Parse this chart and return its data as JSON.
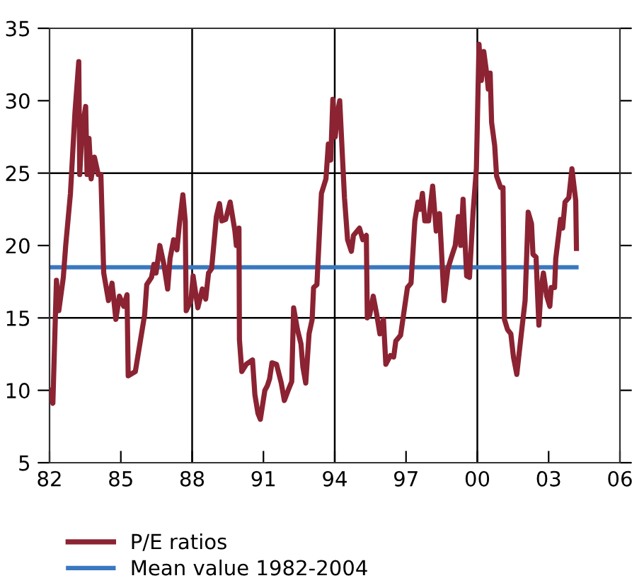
{
  "chart_data": {
    "type": "line",
    "x": [
      1982.0,
      1982.14,
      1982.29,
      1982.39,
      1982.58,
      1982.68,
      1982.88,
      1983.07,
      1983.23,
      1983.27,
      1983.38,
      1983.52,
      1983.58,
      1983.66,
      1983.75,
      1983.89,
      1984.05,
      1984.16,
      1984.28,
      1984.48,
      1984.63,
      1984.79,
      1984.94,
      1985.12,
      1985.26,
      1985.31,
      1985.61,
      1985.8,
      1986.0,
      1986.09,
      1986.29,
      1986.39,
      1986.48,
      1986.64,
      1986.81,
      1986.97,
      1987.07,
      1987.22,
      1987.36,
      1987.46,
      1987.61,
      1987.71,
      1987.75,
      1987.95,
      1988.04,
      1988.24,
      1988.43,
      1988.57,
      1988.69,
      1988.82,
      1989.02,
      1989.15,
      1989.25,
      1989.41,
      1989.6,
      1989.8,
      1989.86,
      1989.97,
      1989.99,
      1990.09,
      1990.28,
      1990.54,
      1990.64,
      1990.77,
      1990.87,
      1991.06,
      1991.16,
      1991.26,
      1991.36,
      1991.55,
      1991.75,
      1991.88,
      1992.04,
      1992.19,
      1992.27,
      1992.43,
      1992.58,
      1992.66,
      1992.78,
      1992.92,
      1993.05,
      1993.11,
      1993.25,
      1993.4,
      1993.44,
      1993.63,
      1993.73,
      1993.83,
      1993.92,
      1994.02,
      1994.12,
      1994.21,
      1994.31,
      1994.41,
      1994.54,
      1994.7,
      1994.79,
      1995.04,
      1995.18,
      1995.33,
      1995.37,
      1995.47,
      1995.62,
      1995.76,
      1995.9,
      1996.05,
      1996.15,
      1996.34,
      1996.48,
      1996.57,
      1996.77,
      1996.92,
      1997.06,
      1997.21,
      1997.37,
      1997.5,
      1997.6,
      1997.69,
      1997.79,
      1997.95,
      1998.12,
      1998.27,
      1998.41,
      1998.6,
      1998.76,
      1998.91,
      1999.07,
      1999.2,
      1999.3,
      1999.4,
      1999.49,
      1999.55,
      1999.67,
      1999.82,
      1999.96,
      2000.07,
      2000.17,
      2000.27,
      2000.4,
      2000.46,
      2000.54,
      2000.6,
      2000.73,
      2000.81,
      2000.98,
      2001.08,
      2001.14,
      2001.27,
      2001.41,
      2001.52,
      2001.66,
      2001.85,
      2002.01,
      2002.14,
      2002.28,
      2002.34,
      2002.47,
      2002.53,
      2002.59,
      2002.68,
      2002.78,
      2002.92,
      2003.05,
      2003.11,
      2003.25,
      2003.3,
      2003.5,
      2003.59,
      2003.69,
      2003.85,
      2003.98,
      2004.14,
      2004.17
    ],
    "series": [
      {
        "name": "P/E ratios",
        "color": "#8b2332",
        "values": [
          10.0,
          9.1,
          17.6,
          15.5,
          17.8,
          20.0,
          23.6,
          29.2,
          32.7,
          24.9,
          28.2,
          29.6,
          24.9,
          27.4,
          24.6,
          26.1,
          24.9,
          24.9,
          18.1,
          16.2,
          17.4,
          14.9,
          16.5,
          15.8,
          16.6,
          11.0,
          11.3,
          13.2,
          15.2,
          17.3,
          17.8,
          18.7,
          18.1,
          20.0,
          18.7,
          17.0,
          19.1,
          20.4,
          19.7,
          21.4,
          23.5,
          21.7,
          15.5,
          16.2,
          17.9,
          15.7,
          17.0,
          16.3,
          18.1,
          18.4,
          22.0,
          22.9,
          21.7,
          21.8,
          23.0,
          21.0,
          20.0,
          21.2,
          13.5,
          11.3,
          11.8,
          12.1,
          9.7,
          8.4,
          8.0,
          10.0,
          10.3,
          10.8,
          11.9,
          11.8,
          10.5,
          9.3,
          10.0,
          10.6,
          15.7,
          14.2,
          13.2,
          11.6,
          10.5,
          13.9,
          14.9,
          17.1,
          17.3,
          22.3,
          23.6,
          24.6,
          27.0,
          25.9,
          30.1,
          27.5,
          29.2,
          30.0,
          26.6,
          23.3,
          20.4,
          19.6,
          20.7,
          21.2,
          20.4,
          20.7,
          15.0,
          15.2,
          16.5,
          15.3,
          13.9,
          14.9,
          11.8,
          12.4,
          12.3,
          13.4,
          13.8,
          15.5,
          17.1,
          17.4,
          21.7,
          23.0,
          22.5,
          23.6,
          21.7,
          21.7,
          24.1,
          21.0,
          22.2,
          16.2,
          18.4,
          19.2,
          20.0,
          22.0,
          20.0,
          23.2,
          20.0,
          17.9,
          17.8,
          22.3,
          25.3,
          33.9,
          31.4,
          33.4,
          31.8,
          30.8,
          31.9,
          28.5,
          26.9,
          24.8,
          24.0,
          24.0,
          14.9,
          14.2,
          13.9,
          12.3,
          11.1,
          13.9,
          16.2,
          22.3,
          21.5,
          19.4,
          19.2,
          16.8,
          14.5,
          17.0,
          18.1,
          16.5,
          15.8,
          17.1,
          17.1,
          19.1,
          21.8,
          21.2,
          23.0,
          23.3,
          25.3,
          23.1,
          19.8
        ]
      },
      {
        "name": "Mean value 1982-2004",
        "color": "#3a78c0",
        "x": [
          1982.0,
          2004.17
        ],
        "values": [
          18.5,
          18.5
        ]
      }
    ],
    "xlim": [
      1982,
      2006
    ],
    "xticks": [
      {
        "value": 1982,
        "label": "82"
      },
      {
        "value": 1985,
        "label": "85"
      },
      {
        "value": 1988,
        "label": "88"
      },
      {
        "value": 1991,
        "label": "91"
      },
      {
        "value": 1994,
        "label": "94"
      },
      {
        "value": 1997,
        "label": "97"
      },
      {
        "value": 2000,
        "label": "00"
      },
      {
        "value": 2003,
        "label": "03"
      },
      {
        "value": 2006,
        "label": "06"
      }
    ],
    "ylim": [
      5,
      35
    ],
    "yticks": [
      5,
      10,
      15,
      20,
      25,
      30,
      35
    ],
    "ref_lines": [
      {
        "axis": "y",
        "value": 15,
        "color": "#000000"
      },
      {
        "axis": "y",
        "value": 25,
        "color": "#000000"
      },
      {
        "axis": "x",
        "value": 1988,
        "color": "#000000"
      },
      {
        "axis": "x",
        "value": 1994,
        "color": "#000000"
      },
      {
        "axis": "x",
        "value": 2000,
        "color": "#000000"
      }
    ],
    "legend": "bottom",
    "grid": false,
    "marker": "none",
    "line_style": "solid"
  }
}
